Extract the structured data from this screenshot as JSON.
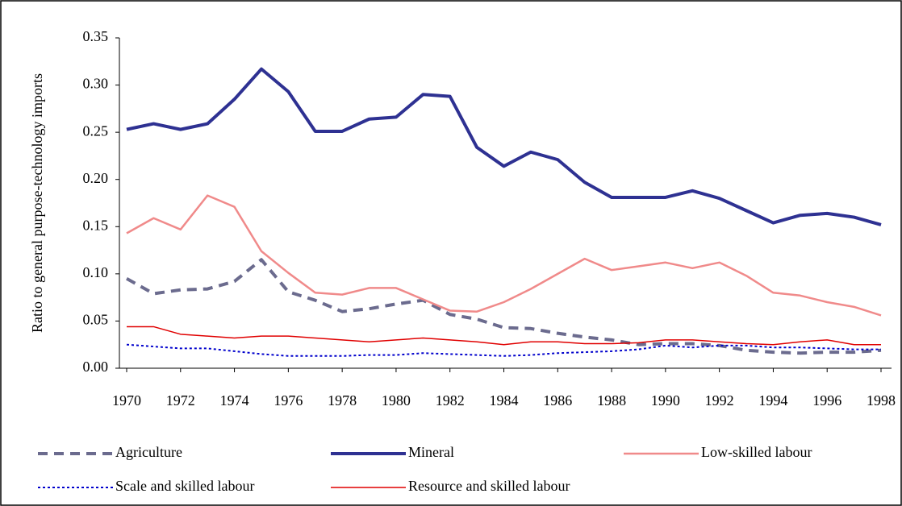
{
  "chart_data": {
    "type": "line",
    "y_label": "Ratio to general purpose-technology imports",
    "x": [
      1970,
      1971,
      1972,
      1973,
      1974,
      1975,
      1976,
      1977,
      1978,
      1979,
      1980,
      1981,
      1982,
      1983,
      1984,
      1985,
      1986,
      1987,
      1988,
      1989,
      1990,
      1991,
      1992,
      1993,
      1994,
      1995,
      1996,
      1997,
      1998
    ],
    "xlim": [
      1970,
      1998
    ],
    "xticks": [
      1970,
      1972,
      1974,
      1976,
      1978,
      1980,
      1982,
      1984,
      1986,
      1988,
      1990,
      1992,
      1994,
      1996,
      1998
    ],
    "ylim": [
      0,
      0.35
    ],
    "yticks": [
      {
        "value": 0,
        "label": "0.00"
      },
      {
        "value": 0.05,
        "label": "0.05"
      },
      {
        "value": 0.1,
        "label": "0.10"
      },
      {
        "value": 0.15,
        "label": "0.15"
      },
      {
        "value": 0.2,
        "label": "0.20"
      },
      {
        "value": 0.25,
        "label": "0.25"
      },
      {
        "value": 0.3,
        "label": "0.30"
      },
      {
        "value": 0.35,
        "label": "0.35"
      }
    ],
    "grid": false,
    "legend": "bottom",
    "series": [
      {
        "name": "Agriculture",
        "color": "#6b6b8e",
        "dash": "dashed",
        "values": [
          0.095,
          0.079,
          0.083,
          0.084,
          0.092,
          0.115,
          0.081,
          0.072,
          0.06,
          0.063,
          0.068,
          0.072,
          0.057,
          0.052,
          0.043,
          0.042,
          0.037,
          0.033,
          0.03,
          0.025,
          0.026,
          0.026,
          0.024,
          0.019,
          0.017,
          0.016,
          0.017,
          0.017,
          0.019
        ]
      },
      {
        "name": "Mineral",
        "color": "#2e3192",
        "dash": "solid",
        "values": [
          0.253,
          0.259,
          0.253,
          0.259,
          0.285,
          0.317,
          0.293,
          0.251,
          0.251,
          0.264,
          0.266,
          0.29,
          0.288,
          0.234,
          0.214,
          0.229,
          0.221,
          0.197,
          0.181,
          0.181,
          0.181,
          0.188,
          0.18,
          0.167,
          0.154,
          0.162,
          0.164,
          0.16,
          0.152
        ]
      },
      {
        "name": "Low-skilled labour",
        "color": "#f08a8a",
        "dash": "solid",
        "values": [
          0.143,
          0.159,
          0.147,
          0.183,
          0.171,
          0.124,
          0.101,
          0.08,
          0.078,
          0.085,
          0.085,
          0.073,
          0.061,
          0.06,
          0.07,
          0.084,
          0.1,
          0.116,
          0.104,
          0.108,
          0.112,
          0.106,
          0.112,
          0.098,
          0.08,
          0.077,
          0.07,
          0.065,
          0.056
        ]
      },
      {
        "name": "Scale and skilled labour",
        "color": "#0000cc",
        "dash": "dotted",
        "values": [
          0.025,
          0.023,
          0.021,
          0.021,
          0.018,
          0.015,
          0.013,
          0.013,
          0.013,
          0.014,
          0.014,
          0.016,
          0.015,
          0.014,
          0.013,
          0.014,
          0.016,
          0.017,
          0.018,
          0.02,
          0.024,
          0.022,
          0.024,
          0.024,
          0.022,
          0.022,
          0.021,
          0.02,
          0.02
        ]
      },
      {
        "name": "Resource and skilled labour",
        "color": "#e00000",
        "dash": "solid",
        "values": [
          0.044,
          0.044,
          0.036,
          0.034,
          0.032,
          0.034,
          0.034,
          0.032,
          0.03,
          0.028,
          0.03,
          0.032,
          0.03,
          0.028,
          0.025,
          0.028,
          0.028,
          0.026,
          0.026,
          0.027,
          0.03,
          0.03,
          0.028,
          0.026,
          0.025,
          0.028,
          0.03,
          0.025,
          0.025
        ]
      }
    ]
  }
}
